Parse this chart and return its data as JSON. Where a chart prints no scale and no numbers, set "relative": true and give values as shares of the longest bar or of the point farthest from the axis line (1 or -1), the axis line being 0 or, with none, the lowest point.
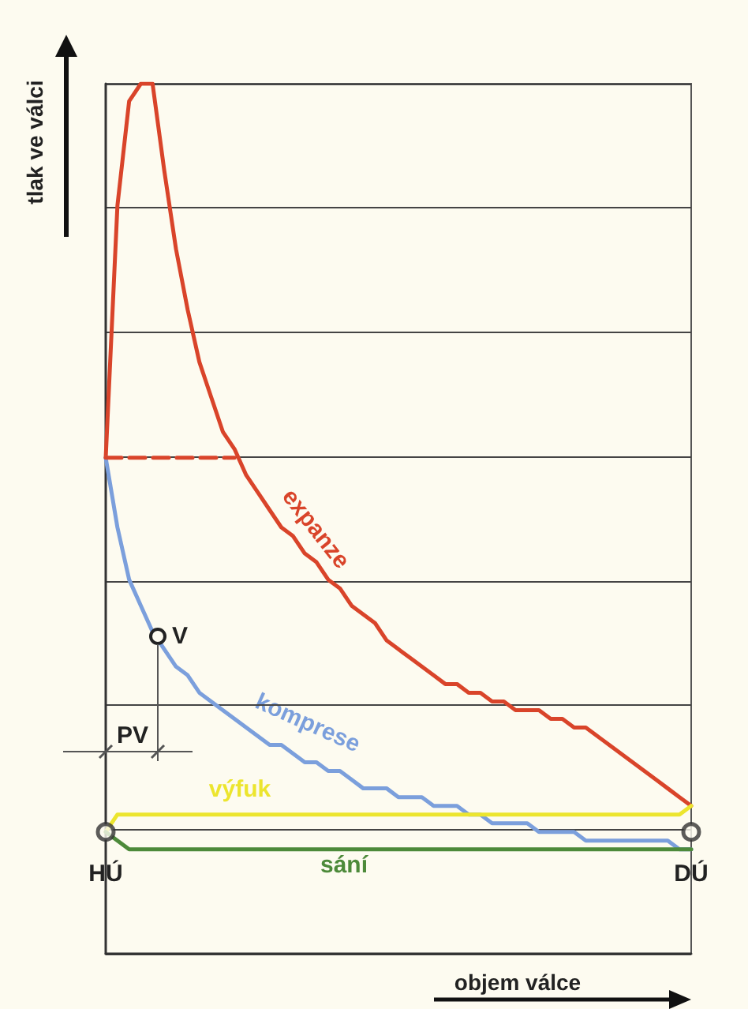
{
  "chart_data": {
    "type": "line",
    "relative": true,
    "xlabel": "objem válce",
    "ylabel": "tlak ve válci",
    "grid": "y",
    "marker": "none",
    "line_style": "solid",
    "annotations": [
      "V",
      "PV"
    ],
    "categories": [
      "HÚ",
      null,
      null,
      null,
      null,
      null,
      null,
      null,
      null,
      null,
      null,
      null,
      null,
      null,
      null,
      null,
      null,
      null,
      null,
      null,
      null,
      null,
      null,
      null,
      null,
      null,
      null,
      null,
      null,
      null,
      null,
      null,
      null,
      null,
      null,
      null,
      null,
      null,
      null,
      null,
      null,
      null,
      null,
      null,
      null,
      null,
      null,
      null,
      null,
      null,
      "DÚ"
    ],
    "series": [
      {
        "name": "expanze",
        "color": "#d9442a",
        "values": [
          0.57,
          0.86,
          0.98,
          1,
          1,
          0.9,
          0.81,
          0.74,
          0.68,
          0.64,
          0.6,
          0.58,
          0.55,
          0.53,
          0.51,
          0.49,
          0.48,
          0.46,
          0.45,
          0.43,
          0.42,
          0.4,
          0.39,
          0.38,
          0.36,
          0.35,
          0.34,
          0.33,
          0.32,
          0.31,
          0.31,
          0.3,
          0.3,
          0.29,
          0.29,
          0.28,
          0.28,
          0.28,
          0.27,
          0.27,
          0.26,
          0.26,
          0.25,
          0.24,
          0.23,
          0.22,
          0.21,
          0.2,
          0.19,
          0.18,
          0.17
        ]
      },
      {
        "name": "komprese",
        "color": "#7b9fdc",
        "values": [
          0.57,
          0.49,
          0.43,
          0.4,
          0.37,
          0.35,
          0.33,
          0.32,
          0.3,
          0.29,
          0.28,
          0.27,
          0.26,
          0.25,
          0.24,
          0.24,
          0.23,
          0.22,
          0.22,
          0.21,
          0.21,
          0.2,
          0.19,
          0.19,
          0.19,
          0.18,
          0.18,
          0.18,
          0.17,
          0.17,
          0.17,
          0.16,
          0.16,
          0.15,
          0.15,
          0.15,
          0.15,
          0.14,
          0.14,
          0.14,
          0.14,
          0.13,
          0.13,
          0.13,
          0.13,
          0.13,
          0.13,
          0.13,
          0.13,
          0.12,
          0.12
        ]
      },
      {
        "name": "výfuk",
        "color": "#ece52e",
        "values": [
          0.14,
          0.16,
          0.16,
          0.16,
          0.16,
          0.16,
          0.16,
          0.16,
          0.16,
          0.16,
          0.16,
          0.16,
          0.16,
          0.16,
          0.16,
          0.16,
          0.16,
          0.16,
          0.16,
          0.16,
          0.16,
          0.16,
          0.16,
          0.16,
          0.16,
          0.16,
          0.16,
          0.16,
          0.16,
          0.16,
          0.16,
          0.16,
          0.16,
          0.16,
          0.16,
          0.16,
          0.16,
          0.16,
          0.16,
          0.16,
          0.16,
          0.16,
          0.16,
          0.16,
          0.16,
          0.16,
          0.16,
          0.16,
          0.16,
          0.16,
          0.17
        ]
      },
      {
        "name": "sání",
        "color": "#4d8a3a",
        "values": [
          0.14,
          0.13,
          0.12,
          0.12,
          0.12,
          0.12,
          0.12,
          0.12,
          0.12,
          0.12,
          0.12,
          0.12,
          0.12,
          0.12,
          0.12,
          0.12,
          0.12,
          0.12,
          0.12,
          0.12,
          0.12,
          0.12,
          0.12,
          0.12,
          0.12,
          0.12,
          0.12,
          0.12,
          0.12,
          0.12,
          0.12,
          0.12,
          0.12,
          0.12,
          0.12,
          0.12,
          0.12,
          0.12,
          0.12,
          0.12,
          0.12,
          0.12,
          0.12,
          0.12,
          0.12,
          0.12,
          0.12,
          0.12,
          0.12,
          0.12,
          0.12
        ]
      },
      {
        "color": "#d9442a",
        "line_style": "dashed",
        "values": [
          0.57,
          0.57,
          0.57,
          0.57,
          0.57,
          0.57,
          0.57,
          0.57,
          0.57,
          0.57,
          0.57,
          0.57,
          null,
          null,
          null,
          null,
          null,
          null,
          null,
          null,
          null,
          null,
          null,
          null,
          null,
          null,
          null,
          null,
          null,
          null,
          null,
          null,
          null,
          null,
          null,
          null,
          null,
          null,
          null,
          null,
          null,
          null,
          null,
          null,
          null,
          null,
          null,
          null,
          null,
          null,
          null
        ]
      },
      {
        "type": "scatter",
        "marker": "circle",
        "color": "#333333",
        "values": [
          0.14,
          null,
          null,
          null,
          null,
          null,
          null,
          null,
          null,
          null,
          null,
          null,
          null,
          null,
          null,
          null,
          null,
          null,
          null,
          null,
          null,
          null,
          null,
          null,
          null,
          null,
          null,
          null,
          null,
          null,
          null,
          null,
          null,
          null,
          null,
          null,
          null,
          null,
          null,
          null,
          null,
          null,
          null,
          null,
          null,
          null,
          null,
          null,
          null,
          null,
          0.14
        ]
      }
    ]
  }
}
